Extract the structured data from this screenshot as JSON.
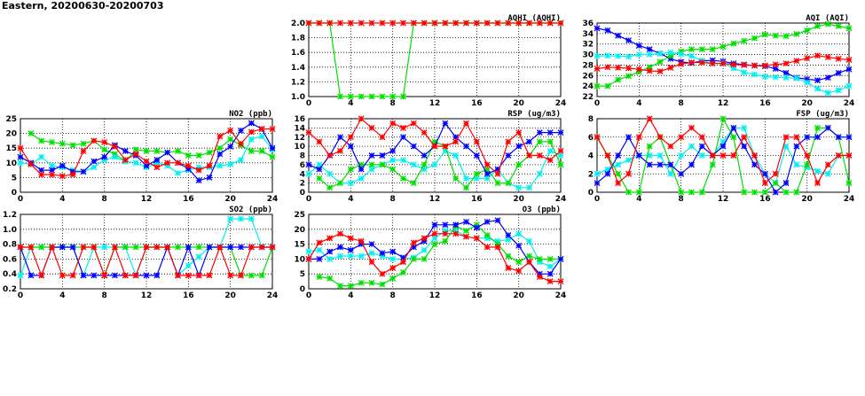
{
  "page_title": "Eastern, 20200630-20200703",
  "colors": {
    "red": "#ff0000",
    "green": "#00e000",
    "blue": "#0000ff",
    "cyan": "#00f0f0"
  },
  "chart_data": [
    {
      "id": "aqhi",
      "type": "line",
      "title": "AQHI (AQHI)",
      "ylim": [
        1.0,
        2.0
      ],
      "yticks": [
        "1.0",
        "1.2",
        "1.4",
        "1.6",
        "1.8",
        "2.0"
      ],
      "xlim": [
        0,
        24
      ],
      "xticks": [
        "0",
        "4",
        "8",
        "12",
        "16",
        "20",
        "24"
      ],
      "series": [
        {
          "name": "green",
          "values": [
            2,
            2,
            2,
            1,
            1,
            1,
            1,
            1,
            1,
            1,
            2,
            2,
            2,
            2,
            2,
            2,
            2,
            2,
            2,
            2,
            2,
            2,
            2,
            2,
            2
          ]
        },
        {
          "name": "red",
          "values": [
            2,
            2,
            2,
            2,
            2,
            2,
            2,
            2,
            2,
            2,
            2,
            2,
            2,
            2,
            2,
            2,
            2,
            2,
            2,
            2,
            2,
            2,
            2,
            2,
            2
          ]
        }
      ]
    },
    {
      "id": "aqi",
      "type": "line",
      "title": "AQI (AQI)",
      "ylim": [
        22,
        36
      ],
      "yticks": [
        "22",
        "24",
        "26",
        "28",
        "30",
        "32",
        "34",
        "36"
      ],
      "xlim": [
        0,
        24
      ],
      "xticks": [
        "0",
        "4",
        "8",
        "12",
        "16",
        "20",
        "24"
      ],
      "series": [
        {
          "name": "blue",
          "values": [
            35,
            34.6,
            33.6,
            32.7,
            31.7,
            31,
            30.2,
            29.2,
            28.6,
            28.4,
            28.8,
            28.9,
            28.7,
            28.3,
            28.1,
            27.9,
            27.8,
            27.3,
            26.5,
            25.6,
            25.3,
            25.1,
            25.6,
            26.5,
            27.2
          ]
        },
        {
          "name": "green",
          "values": [
            24,
            24,
            25.2,
            25.9,
            26.7,
            27.6,
            28.6,
            29.7,
            30.6,
            31,
            31,
            31,
            31.5,
            32.1,
            32.6,
            33.1,
            33.8,
            33.6,
            33.5,
            33.9,
            34.6,
            35.4,
            35.8,
            35.4,
            35
          ]
        },
        {
          "name": "cyan",
          "values": [
            29.7,
            29.8,
            29.7,
            29.6,
            30,
            30,
            30.2,
            30.4,
            30.1,
            29.7,
            28.8,
            28.3,
            28.4,
            27.4,
            26.6,
            26.2,
            25.8,
            25.7,
            25.6,
            25.5,
            24.7,
            23.5,
            22.7,
            23.2,
            24
          ]
        },
        {
          "name": "red",
          "values": [
            27.3,
            27.6,
            27.5,
            27.4,
            27.2,
            26.9,
            26.8,
            27.5,
            28.2,
            28.5,
            28.5,
            28.3,
            28.3,
            28.1,
            28,
            27.9,
            27.9,
            28.1,
            28.3,
            28.8,
            29.3,
            29.8,
            29.5,
            29.2,
            29
          ]
        }
      ]
    },
    {
      "id": "no2",
      "type": "line",
      "title": "NO2 (ppb)",
      "ylim": [
        0,
        25
      ],
      "yticks": [
        "0",
        "5",
        "10",
        "15",
        "20",
        "25"
      ],
      "xlim": [
        0,
        24
      ],
      "xticks": [
        "0",
        "4",
        "8",
        "12",
        "16",
        "20",
        "24"
      ],
      "series": [
        {
          "name": "green",
          "values": [
            null,
            20,
            17.5,
            17,
            16.5,
            16,
            16.5,
            17.5,
            14.5,
            13,
            10.5,
            14.5,
            14,
            14,
            13.5,
            14,
            12.5,
            12.5,
            13.5,
            15,
            18,
            16,
            14,
            14,
            12
          ]
        },
        {
          "name": "cyan",
          "values": [
            10,
            9.5,
            12,
            9,
            8.5,
            7.5,
            7,
            8.5,
            11,
            12,
            10.5,
            10,
            8.5,
            10,
            9,
            6.5,
            7.5,
            8.5,
            8.5,
            9,
            9.5,
            11,
            18,
            19,
            14.5
          ]
        },
        {
          "name": "blue",
          "values": [
            12,
            10,
            7.5,
            7.5,
            9,
            7,
            7,
            10.5,
            12,
            16,
            14,
            12.5,
            9,
            11,
            13.5,
            10,
            8,
            4,
            5,
            13,
            15.5,
            21,
            23.5,
            21.5,
            15
          ]
        },
        {
          "name": "red",
          "values": [
            15,
            9.5,
            6,
            6,
            5.5,
            6,
            14,
            17.5,
            17,
            15.5,
            11,
            13,
            10.5,
            8.5,
            10,
            10,
            9,
            7.5,
            9,
            19,
            21,
            16.5,
            20.5,
            21.5,
            21.5
          ]
        }
      ]
    },
    {
      "id": "rsp",
      "type": "line",
      "title": "RSP (ug/m3)",
      "ylim": [
        0,
        16
      ],
      "yticks": [
        "0",
        "2",
        "4",
        "6",
        "8",
        "10",
        "12",
        "14",
        "16"
      ],
      "xlim": [
        0,
        24
      ],
      "xticks": [
        "0",
        "4",
        "8",
        "12",
        "16",
        "20",
        "24"
      ],
      "series": [
        {
          "name": "cyan",
          "values": [
            4,
            6,
            4,
            2,
            2,
            3,
            5,
            6,
            7,
            7,
            6,
            5,
            6,
            9,
            8,
            3,
            3,
            3,
            5,
            2,
            1,
            1,
            4,
            9,
            8
          ]
        },
        {
          "name": "green",
          "values": [
            null,
            3,
            1,
            2,
            5,
            6,
            6,
            6,
            5,
            3,
            2,
            6,
            11,
            10,
            3,
            1,
            4,
            5,
            2,
            2,
            6,
            8,
            11,
            11,
            6
          ]
        },
        {
          "name": "blue",
          "values": [
            6,
            5,
            8,
            12,
            10,
            5,
            8,
            8,
            9,
            12,
            10,
            8,
            10,
            15,
            12,
            10,
            8,
            4,
            5,
            8,
            10,
            11,
            13,
            13,
            13
          ]
        },
        {
          "name": "red",
          "values": [
            13,
            11,
            8,
            9,
            12,
            16,
            14,
            12,
            15,
            14,
            15,
            13,
            10,
            10,
            11,
            15,
            11,
            6,
            4,
            11,
            13,
            8,
            8,
            7,
            9
          ]
        }
      ]
    },
    {
      "id": "fsp",
      "type": "line",
      "title": "FSP (ug/m3)",
      "ylim": [
        0,
        8
      ],
      "yticks": [
        "0",
        "2",
        "4",
        "6",
        "8"
      ],
      "xlim": [
        0,
        24
      ],
      "xticks": [
        "0",
        "4",
        "8",
        "12",
        "16",
        "20",
        "24"
      ],
      "series": [
        {
          "name": "cyan",
          "values": [
            2,
            2.5,
            3,
            3.5,
            4,
            4,
            4,
            2,
            4,
            5,
            4,
            4,
            5.5,
            7,
            7,
            4,
            2,
            1,
            5,
            3,
            2.7,
            2.3,
            2,
            4,
            4
          ]
        },
        {
          "name": "green",
          "values": [
            6,
            4,
            2,
            0,
            0,
            5,
            6,
            3,
            0,
            0,
            0,
            3,
            8,
            6,
            0,
            0,
            0,
            1,
            0,
            0,
            3,
            7,
            7,
            6,
            1
          ]
        },
        {
          "name": "blue",
          "values": [
            1,
            2,
            4,
            6,
            4,
            3,
            3,
            3,
            2,
            3,
            5,
            4,
            5,
            7,
            5,
            3,
            2,
            0,
            1,
            5,
            6,
            6,
            7,
            6,
            6
          ]
        },
        {
          "name": "red",
          "values": [
            6,
            4,
            1,
            2,
            6,
            8,
            6,
            5,
            6,
            7,
            6,
            4,
            4,
            4,
            6,
            4,
            1,
            2,
            6,
            6,
            4,
            1,
            3,
            4,
            4
          ]
        }
      ]
    },
    {
      "id": "so2",
      "type": "line",
      "title": "SO2 (ppb)",
      "ylim": [
        0.2,
        1.2
      ],
      "yticks": [
        "0.2",
        "0.4",
        "0.6",
        "0.8",
        "1.0",
        "1.2"
      ],
      "xlim": [
        0,
        24
      ],
      "xticks": [
        "0",
        "4",
        "8",
        "12",
        "16",
        "20",
        "24"
      ],
      "series": [
        {
          "name": "cyan",
          "values": [
            0.38,
            0.76,
            0.76,
            0.76,
            0.76,
            0.76,
            0.38,
            0.76,
            0.76,
            0.76,
            0.76,
            0.38,
            0.76,
            0.76,
            0.76,
            0.38,
            0.51,
            0.63,
            0.76,
            0.76,
            1.14,
            1.14,
            1.14,
            0.76,
            0.76
          ]
        },
        {
          "name": "green",
          "values": [
            0.76,
            0.76,
            0.76,
            0.76,
            0.76,
            0.76,
            0.76,
            0.76,
            0.38,
            0.76,
            0.76,
            0.76,
            0.76,
            0.76,
            0.76,
            0.76,
            0.76,
            0.76,
            0.76,
            0.76,
            0.76,
            0.38,
            0.38,
            0.38,
            0.76
          ]
        },
        {
          "name": "blue",
          "values": [
            0.76,
            0.38,
            0.38,
            0.76,
            0.76,
            0.76,
            0.38,
            0.38,
            0.38,
            0.38,
            0.38,
            0.38,
            0.38,
            0.38,
            0.76,
            0.38,
            0.76,
            0.38,
            0.76,
            0.76,
            0.76,
            0.76,
            0.76,
            0.76,
            0.76
          ]
        },
        {
          "name": "red",
          "values": [
            0.76,
            0.76,
            0.38,
            0.76,
            0.38,
            0.38,
            0.76,
            0.76,
            0.38,
            0.76,
            0.38,
            0.38,
            0.76,
            0.76,
            0.76,
            0.38,
            0.38,
            0.38,
            0.38,
            0.76,
            0.38,
            0.38,
            0.76,
            0.76,
            0.76
          ]
        }
      ]
    },
    {
      "id": "o3",
      "type": "line",
      "title": "O3 (ppb)",
      "ylim": [
        0,
        25
      ],
      "yticks": [
        "0",
        "5",
        "10",
        "15",
        "20",
        "25"
      ],
      "xlim": [
        0,
        24
      ],
      "xticks": [
        "0",
        "4",
        "8",
        "12",
        "16",
        "20",
        "24"
      ],
      "series": [
        {
          "name": "cyan",
          "values": [
            12.5,
            13,
            10,
            11,
            11,
            11,
            12,
            11,
            10,
            10,
            10.5,
            13,
            17,
            19.5,
            19.5,
            17.5,
            17,
            17,
            16,
            16.5,
            18.5,
            16,
            9,
            7.5,
            10
          ]
        },
        {
          "name": "green",
          "values": [
            null,
            4,
            3.5,
            1,
            1,
            2,
            2,
            1.5,
            3.5,
            5.5,
            10,
            10,
            15,
            16,
            21,
            19.5,
            21.5,
            18,
            15,
            11,
            9,
            11,
            10,
            10,
            10
          ]
        },
        {
          "name": "blue",
          "values": [
            10,
            10,
            12.5,
            14,
            13,
            15,
            15,
            12,
            12.5,
            10.5,
            14,
            16,
            21.5,
            21.5,
            21.5,
            22.5,
            20.5,
            22.5,
            23,
            18,
            14.5,
            9,
            5,
            5,
            10
          ]
        },
        {
          "name": "red",
          "values": [
            10,
            15.5,
            17,
            18.5,
            17,
            16,
            9,
            5,
            7,
            9,
            15.5,
            17,
            18.5,
            18.5,
            18.5,
            17.5,
            17,
            14,
            14,
            7,
            6,
            9,
            4,
            2.5,
            2.5
          ]
        }
      ]
    }
  ]
}
